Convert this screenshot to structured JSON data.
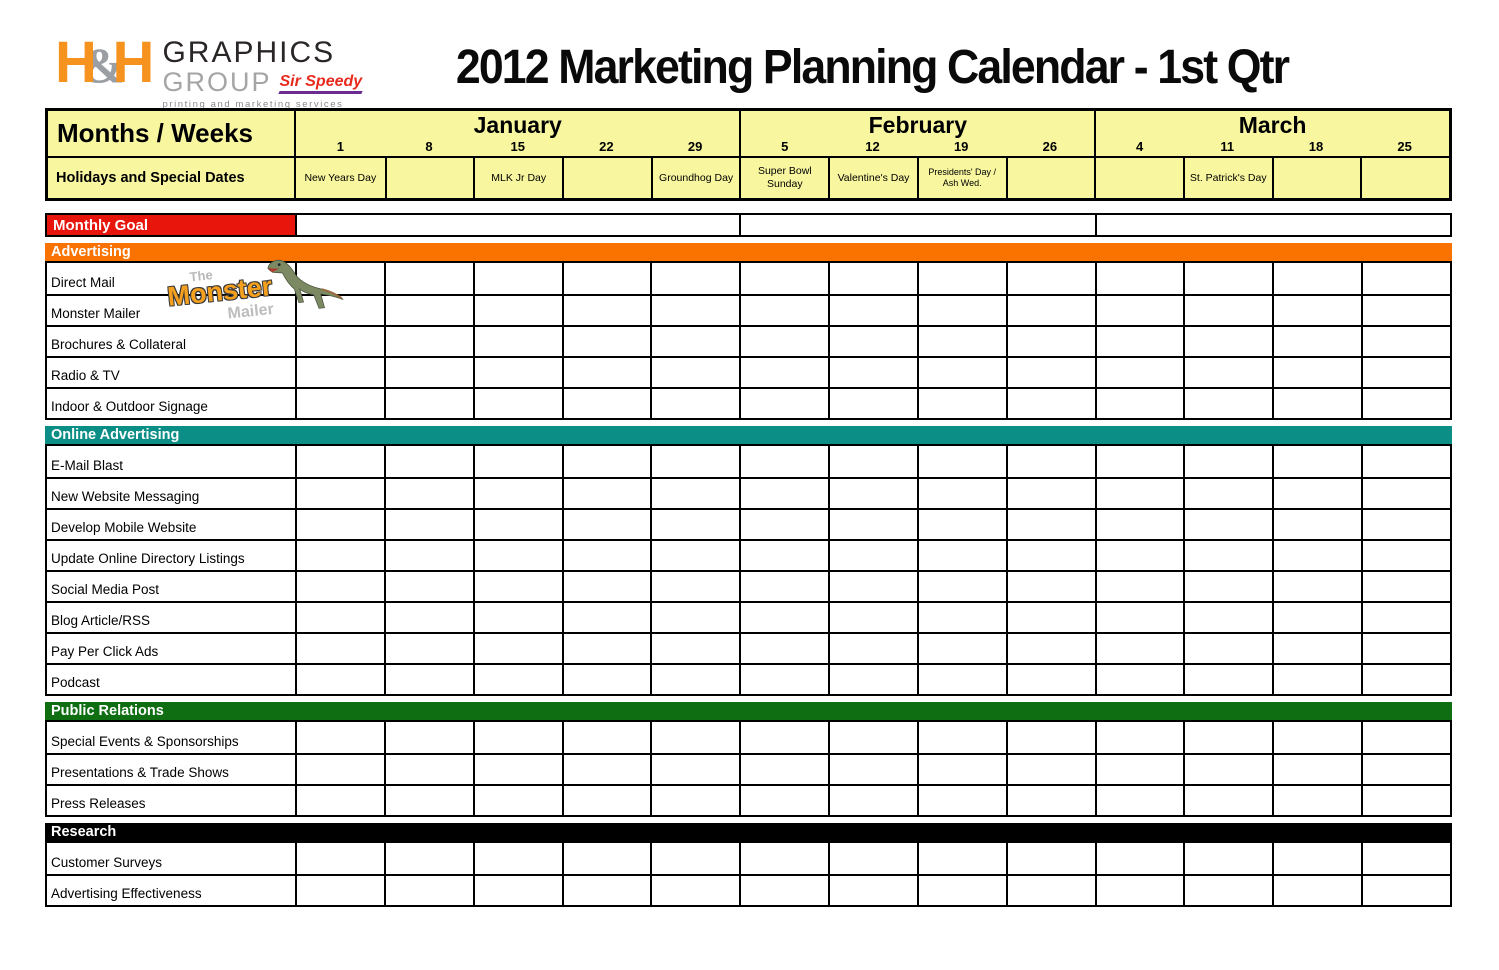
{
  "page": {
    "title": "2012 Marketing Planning Calendar - 1st Qtr"
  },
  "logo": {
    "h_left": "H",
    "ampersand": "&",
    "h_right": "H",
    "graphics": "GRAPHICS",
    "group": "GROUP",
    "sir_speedy": "Sir Speedy",
    "tagline": "printing and marketing services"
  },
  "monster_mailer": {
    "the": "The",
    "monster": "Monster",
    "mailer": "Mailer"
  },
  "header": {
    "months_weeks_label": "Months / Weeks",
    "holidays_label": "Holidays and Special Dates",
    "months": [
      {
        "name": "January",
        "weeks": [
          "1",
          "8",
          "15",
          "22",
          "29"
        ]
      },
      {
        "name": "February",
        "weeks": [
          "5",
          "12",
          "19",
          "26"
        ]
      },
      {
        "name": "March",
        "weeks": [
          "4",
          "11",
          "18",
          "25"
        ]
      }
    ],
    "holidays": [
      "New Years Day",
      "",
      "MLK Jr Day",
      "",
      "Groundhog Day",
      "Super Bowl Sunday",
      "Valentine's Day",
      "Presidents' Day / Ash Wed.",
      "",
      "",
      "St. Patrick's Day",
      "",
      ""
    ]
  },
  "monthly_goal": {
    "label": "Monthly Goal",
    "color": "#e8150c"
  },
  "sections": [
    {
      "label": "Advertising",
      "color": "#fa7300",
      "rows": [
        "Direct Mail",
        "Monster Mailer",
        "Brochures & Collateral",
        "Radio & TV",
        "Indoor & Outdoor Signage"
      ]
    },
    {
      "label": "Online Advertising",
      "color": "#0b8e86",
      "rows": [
        "E-Mail Blast",
        "New Website Messaging",
        "Develop Mobile Website",
        "Update Online Directory Listings",
        "Social Media Post",
        "Blog Article/RSS",
        "Pay Per Click Ads",
        "Podcast"
      ]
    },
    {
      "label": "Public Relations",
      "color": "#0f6e12",
      "rows": [
        "Special Events & Sponsorships",
        "Presentations & Trade Shows",
        "Press Releases"
      ]
    },
    {
      "label": "Research",
      "color": "#000000",
      "rows": [
        "Customer Surveys",
        "Advertising Effectiveness"
      ]
    }
  ],
  "colors": {
    "header_bg": "#f8f7a0",
    "grid_line": "#000000"
  }
}
